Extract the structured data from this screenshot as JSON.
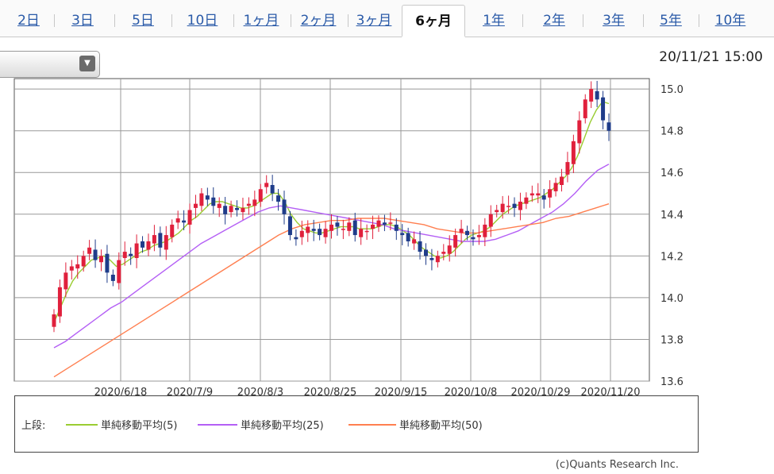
{
  "tabs": [
    {
      "label": "2日",
      "active": false
    },
    {
      "label": "3日",
      "active": false
    },
    {
      "label": "5日",
      "active": false
    },
    {
      "label": "10日",
      "active": false
    },
    {
      "label": "1ヶ月",
      "active": false
    },
    {
      "label": "2ヶ月",
      "active": false
    },
    {
      "label": "3ヶ月",
      "active": false
    },
    {
      "label": "6ヶ月",
      "active": true
    },
    {
      "label": "1年",
      "active": false
    },
    {
      "label": "2年",
      "active": false
    },
    {
      "label": "3年",
      "active": false
    },
    {
      "label": "5年",
      "active": false
    },
    {
      "label": "10年",
      "active": false
    }
  ],
  "dropdown": {
    "value": "",
    "icon": "chevron-down-icon",
    "arrow": "▼"
  },
  "timestamp": "20/11/21 15:00",
  "legend": {
    "prefix": "上段:",
    "items": [
      {
        "label": "単純移動平均(5)",
        "color": "#9acd32"
      },
      {
        "label": "単純移動平均(25)",
        "color": "#b45ff5"
      },
      {
        "label": "単純移動平均(50)",
        "color": "#ff7f50"
      }
    ]
  },
  "copyright": "(c)Quants Research Inc.",
  "chart_data": {
    "type": "candlestick",
    "ylim": [
      13.6,
      15.05
    ],
    "yticks": [
      "13.6",
      "13.8",
      "14.0",
      "14.2",
      "14.4",
      "14.6",
      "14.8",
      "15.0"
    ],
    "xticks": [
      "2020/6/18",
      "2020/7/9",
      "2020/8/3",
      "2020/8/25",
      "2020/9/15",
      "2020/10/8",
      "2020/10/29",
      "2020/11/20"
    ],
    "grid": true,
    "up_color": "#e0203c",
    "down_color": "#1f3c8a",
    "closes": [
      13.92,
      14.05,
      14.12,
      14.15,
      14.16,
      14.2,
      14.24,
      14.18,
      14.2,
      14.12,
      14.08,
      14.18,
      14.22,
      14.2,
      14.26,
      14.24,
      14.27,
      14.3,
      14.24,
      14.3,
      14.35,
      14.38,
      14.36,
      14.42,
      14.45,
      14.5,
      14.47,
      14.44,
      14.45,
      14.4,
      14.44,
      14.42,
      14.43,
      14.45,
      14.47,
      14.52,
      14.55,
      14.5,
      14.46,
      14.4,
      14.3,
      14.28,
      14.32,
      14.34,
      14.32,
      14.3,
      14.33,
      14.35,
      14.34,
      14.33,
      14.36,
      14.3,
      14.33,
      14.32,
      14.35,
      14.37,
      14.35,
      14.36,
      14.32,
      14.3,
      14.27,
      14.28,
      14.22,
      14.2,
      14.18,
      14.2,
      14.22,
      14.25,
      14.3,
      14.33,
      14.3,
      14.28,
      14.3,
      14.35,
      14.4,
      14.42,
      14.45,
      14.44,
      14.43,
      14.46,
      14.48,
      14.5,
      14.5,
      14.47,
      14.52,
      14.55,
      14.58,
      14.65,
      14.75,
      14.85,
      14.95,
      15.0,
      14.95,
      14.85,
      14.8
    ],
    "series": [
      {
        "name": "単純移動平均(5)",
        "color": "#9acd32",
        "values": [
          13.88,
          13.95,
          14.02,
          14.08,
          14.12,
          14.15,
          14.18,
          14.19,
          14.2,
          14.18,
          14.15,
          14.16,
          14.18,
          14.2,
          14.22,
          14.23,
          14.25,
          14.26,
          14.27,
          14.29,
          14.31,
          14.34,
          14.37,
          14.39,
          14.42,
          14.45,
          14.46,
          14.46,
          14.45,
          14.44,
          14.43,
          14.43,
          14.44,
          14.46,
          14.48,
          14.5,
          14.5,
          14.46,
          14.4,
          14.36,
          14.33,
          14.32,
          14.31,
          14.31,
          14.32,
          14.33,
          14.34,
          14.34,
          14.34,
          14.33,
          14.33,
          14.33,
          14.34,
          14.35,
          14.35,
          14.34,
          14.32,
          14.3,
          14.27,
          14.24,
          14.22,
          14.2,
          14.19,
          14.2,
          14.22,
          14.25,
          14.28,
          14.3,
          14.31,
          14.32,
          14.34,
          14.37,
          14.4,
          14.42,
          14.44,
          14.45,
          14.46,
          14.47,
          14.48,
          14.5,
          14.52,
          14.55,
          14.58,
          14.62,
          14.68,
          14.76,
          14.84,
          14.9,
          14.94,
          14.93
        ]
      },
      {
        "name": "単純移動平均(25)",
        "color": "#b45ff5",
        "values": [
          13.76,
          13.79,
          13.83,
          13.87,
          13.91,
          13.95,
          13.98,
          14.02,
          14.06,
          14.1,
          14.14,
          14.18,
          14.22,
          14.26,
          14.29,
          14.32,
          14.35,
          14.38,
          14.41,
          14.43,
          14.44,
          14.43,
          14.42,
          14.41,
          14.4,
          14.39,
          14.38,
          14.37,
          14.36,
          14.35,
          14.33,
          14.32,
          14.31,
          14.3,
          14.29,
          14.28,
          14.27,
          14.27,
          14.27,
          14.28,
          14.3,
          14.32,
          14.35,
          14.38,
          14.41,
          14.45,
          14.5,
          14.56,
          14.61,
          14.64
        ]
      },
      {
        "name": "単純移動平均(50)",
        "color": "#ff7f50",
        "values": [
          13.62,
          13.66,
          13.7,
          13.74,
          13.78,
          13.82,
          13.86,
          13.9,
          13.94,
          13.98,
          14.02,
          14.06,
          14.1,
          14.14,
          14.18,
          14.22,
          14.26,
          14.3,
          14.33,
          14.35,
          14.36,
          14.37,
          14.37,
          14.38,
          14.38,
          14.38,
          14.37,
          14.36,
          14.35,
          14.33,
          14.32,
          14.31,
          14.31,
          14.32,
          14.33,
          14.34,
          14.35,
          14.36,
          14.38,
          14.39,
          14.41,
          14.43,
          14.45
        ]
      }
    ]
  }
}
